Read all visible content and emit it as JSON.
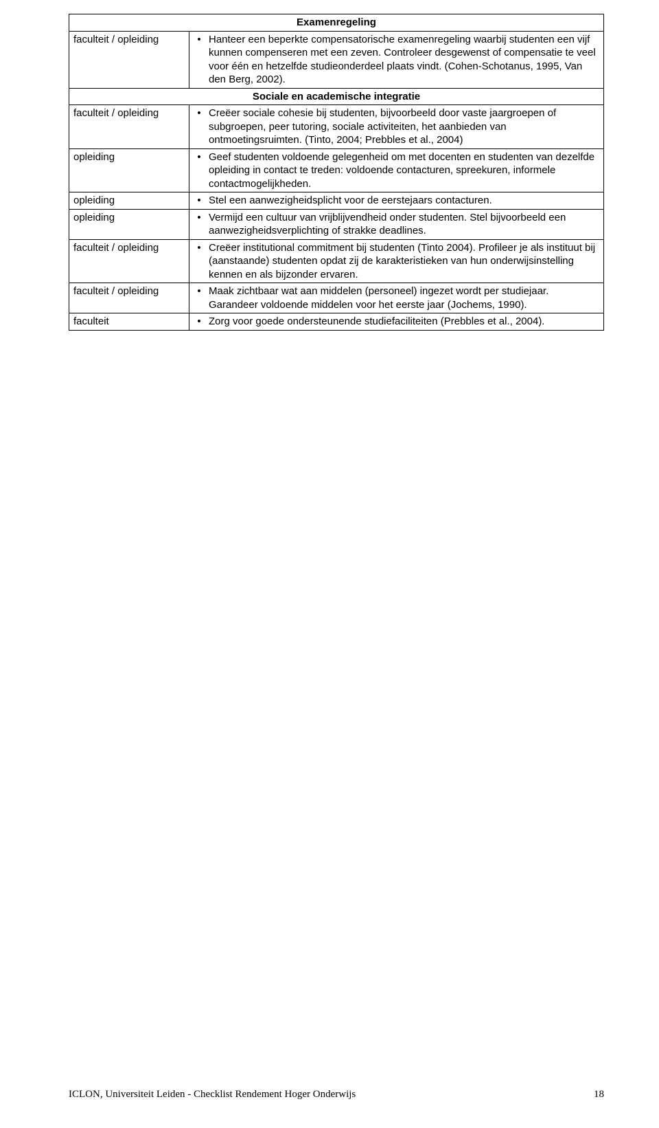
{
  "sections": [
    {
      "title": "Examenregeling",
      "rows": [
        {
          "left": "faculteit / opleiding",
          "bullets": [
            "Hanteer een beperkte compensatorische examenregeling waarbij studenten een vijf kunnen compenseren met een zeven. Controleer desgewenst of compensatie te veel voor één en hetzelfde studieonderdeel plaats vindt. (Cohen-Schotanus, 1995, Van den Berg, 2002)."
          ]
        }
      ]
    },
    {
      "title": "Sociale en academische integratie",
      "rows": [
        {
          "left": "faculteit / opleiding",
          "bullets": [
            "Creëer sociale cohesie bij studenten, bijvoorbeeld door vaste jaargroepen of subgroepen, peer tutoring, sociale activiteiten, het aanbieden van ontmoetingsruimten. (Tinto, 2004; Prebbles et al., 2004)"
          ]
        },
        {
          "left": "opleiding",
          "bullets": [
            "Geef studenten voldoende gelegenheid om met docenten en studenten van dezelfde opleiding in contact te treden: voldoende contacturen, spreekuren, informele contactmogelijkheden."
          ]
        },
        {
          "left": "opleiding",
          "bullets": [
            "Stel een aanwezigheidsplicht voor de eerstejaars contacturen."
          ]
        },
        {
          "left": "opleiding",
          "bullets": [
            "Vermijd een cultuur van vrijblijvendheid onder studenten. Stel bijvoorbeeld een aanwezigheidsverplichting of strakke deadlines."
          ]
        },
        {
          "left": "faculteit / opleiding",
          "bullets": [
            "Creëer institutional commitment bij studenten (Tinto 2004). Profileer je als instituut bij (aanstaande) studenten opdat zij de karakteristieken van hun onderwijsinstelling kennen en als bijzonder ervaren."
          ]
        },
        {
          "left": "faculteit / opleiding",
          "bullets": [
            "Maak zichtbaar wat aan middelen (personeel) ingezet wordt per studiejaar. Garandeer voldoende middelen voor het eerste jaar (Jochems, 1990)."
          ]
        },
        {
          "left": "faculteit",
          "bullets": [
            "Zorg voor goede ondersteunende studiefaciliteiten (Prebbles et al., 2004)."
          ]
        }
      ]
    }
  ],
  "footer": {
    "left": "ICLON, Universiteit Leiden  -  Checklist Rendement Hoger Onderwijs",
    "page": "18"
  }
}
